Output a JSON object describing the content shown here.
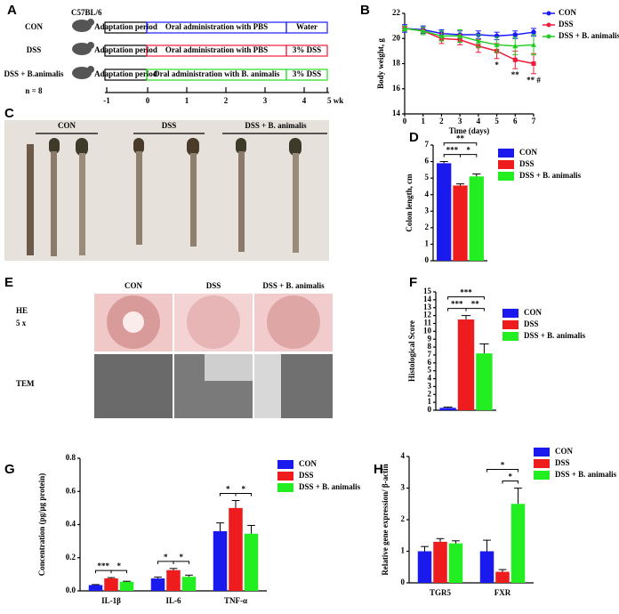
{
  "panel_labels": [
    "A",
    "B",
    "C",
    "D",
    "E",
    "F",
    "G",
    "H"
  ],
  "schematic": {
    "strain": "C57BL/6",
    "n": "n = 8",
    "groups": [
      {
        "name": "CON",
        "color": "#1a1aff",
        "stages": [
          "Adaptation period",
          "Oral administration with PBS",
          "Water"
        ]
      },
      {
        "name": "DSS",
        "color": "#ee1c3a",
        "stages": [
          "Adaptation period",
          "Oral administration with PBS",
          "3% DSS"
        ]
      },
      {
        "name": "DSS + B.animalis",
        "color": "#22dd22",
        "stages": [
          "Adaptation period",
          "Oral administration with B. animalis",
          "3% DSS"
        ]
      }
    ],
    "timeline": [
      "-1",
      "0",
      "1",
      "2",
      "3",
      "4",
      "5 wk"
    ]
  },
  "photos": {
    "colon_groups": [
      "CON",
      "DSS",
      "DSS + B. animalis"
    ],
    "histology_groups": [
      "CON",
      "DSS",
      "DSS + B. animalis"
    ],
    "rows": [
      "HE",
      "5 x",
      "TEM"
    ]
  },
  "chart_data": [
    {
      "type": "line",
      "xlabel": "Time (days)",
      "ylabel": "Body weight, g",
      "x": [
        0,
        1,
        2,
        3,
        4,
        5,
        6,
        7
      ],
      "xlim": [
        0,
        7
      ],
      "xticks": [
        0,
        1,
        2,
        3,
        4,
        5,
        6,
        7
      ],
      "ylim": [
        14,
        22
      ],
      "yticks": [
        14,
        16,
        18,
        20,
        22
      ],
      "series": [
        {
          "name": "CON",
          "color": "#1a1aff",
          "values": [
            20.8,
            20.7,
            20.4,
            20.3,
            20.3,
            20.2,
            20.3,
            20.5
          ],
          "errors": [
            0.3,
            0.3,
            0.3,
            0.3,
            0.3,
            0.3,
            0.3,
            0.3
          ]
        },
        {
          "name": "DSS",
          "color": "#ee1c3a",
          "values": [
            20.8,
            20.6,
            20.0,
            19.9,
            19.4,
            19.0,
            18.3,
            18.0
          ],
          "errors": [
            0.2,
            0.3,
            0.4,
            0.4,
            0.5,
            0.6,
            0.7,
            0.8
          ]
        },
        {
          "name": "DSS + B. animalis",
          "color": "#22cc22",
          "values": [
            20.8,
            20.6,
            20.2,
            20.2,
            19.8,
            19.5,
            19.4,
            19.5
          ],
          "errors": [
            0.2,
            0.3,
            0.4,
            0.5,
            0.5,
            0.6,
            0.7,
            0.8
          ]
        }
      ],
      "annotations": [
        {
          "text": "*",
          "x": 5
        },
        {
          "text": "**",
          "x": 6
        },
        {
          "text": "** #",
          "x": 7
        }
      ]
    },
    {
      "type": "bar",
      "ylabel": "Colon length, cm",
      "ylim": [
        0,
        7
      ],
      "yticks": [
        0,
        1,
        2,
        3,
        4,
        5,
        6,
        7
      ],
      "series": [
        {
          "name": "CON",
          "color": "#1a1aee",
          "values": [
            5.9
          ],
          "errors": [
            0.1
          ]
        },
        {
          "name": "DSS",
          "color": "#ee1c1c",
          "values": [
            4.55
          ],
          "errors": [
            0.1
          ]
        },
        {
          "name": "DSS + B. animalis",
          "color": "#22ee22",
          "values": [
            5.1
          ],
          "errors": [
            0.15
          ]
        }
      ],
      "annotations": [
        {
          "text": "**",
          "from": 0,
          "to": 2
        },
        {
          "text": "***",
          "from": 0,
          "to": 1
        },
        {
          "text": "*",
          "from": 1,
          "to": 2
        }
      ]
    },
    {
      "type": "bar",
      "ylabel": "Histological Score",
      "ylim": [
        0,
        15
      ],
      "yticks": [
        0,
        1,
        2,
        3,
        4,
        5,
        6,
        7,
        8,
        9,
        10,
        11,
        12,
        13,
        14,
        15
      ],
      "series": [
        {
          "name": "CON",
          "color": "#1a1aee",
          "values": [
            0.3
          ],
          "errors": [
            0.1
          ]
        },
        {
          "name": "DSS",
          "color": "#ee1c1c",
          "values": [
            11.5
          ],
          "errors": [
            0.5
          ]
        },
        {
          "name": "DSS + B. animalis",
          "color": "#22ee22",
          "values": [
            7.2
          ],
          "errors": [
            1.2
          ]
        }
      ],
      "annotations": [
        {
          "text": "***",
          "from": 0,
          "to": 2
        },
        {
          "text": "***",
          "from": 0,
          "to": 1
        },
        {
          "text": "**",
          "from": 1,
          "to": 2
        }
      ]
    },
    {
      "type": "bar",
      "ylabel": "Concentration (pg/μg protein)",
      "categories": [
        "IL-1β",
        "IL-6",
        "TNF-α"
      ],
      "ylim": [
        0,
        0.8
      ],
      "yticks": [
        {
          "value": 0,
          "label": "0.0"
        },
        0.2,
        0.4,
        0.6,
        0.8
      ],
      "series": [
        {
          "name": "CON",
          "color": "#1a1aee",
          "values": [
            0.035,
            0.075,
            0.36
          ],
          "errors": [
            0.003,
            0.008,
            0.05
          ]
        },
        {
          "name": "DSS",
          "color": "#ee1c1c",
          "values": [
            0.075,
            0.125,
            0.5
          ],
          "errors": [
            0.005,
            0.01,
            0.045
          ]
        },
        {
          "name": "DSS + B. animalis",
          "color": "#22ee22",
          "values": [
            0.055,
            0.085,
            0.345
          ],
          "errors": [
            0.003,
            0.01,
            0.05
          ]
        }
      ],
      "annotations": [
        {
          "text": "***",
          "category": 0,
          "from": 0,
          "to": 1
        },
        {
          "text": "*",
          "category": 0,
          "from": 1,
          "to": 2
        },
        {
          "text": "*",
          "category": 1,
          "from": 0,
          "to": 1
        },
        {
          "text": "*",
          "category": 1,
          "from": 1,
          "to": 2
        },
        {
          "text": "*",
          "category": 2,
          "from": 0,
          "to": 1
        },
        {
          "text": "*",
          "category": 2,
          "from": 1,
          "to": 2
        }
      ]
    },
    {
      "type": "bar",
      "ylabel": "Relative gene expression/ β-actin",
      "categories": [
        "TGR5",
        "FXR"
      ],
      "ylim": [
        0,
        4
      ],
      "yticks": [
        0,
        1,
        2,
        3,
        4
      ],
      "series": [
        {
          "name": "CON",
          "color": "#1a1aee",
          "values": [
            1.0,
            1.0
          ],
          "errors": [
            0.15,
            0.35
          ]
        },
        {
          "name": "DSS",
          "color": "#ee1c1c",
          "values": [
            1.3,
            0.35
          ],
          "errors": [
            0.1,
            0.07
          ]
        },
        {
          "name": "DSS + B. animalis",
          "color": "#22ee22",
          "values": [
            1.25,
            2.5
          ],
          "errors": [
            0.08,
            0.5
          ]
        }
      ],
      "annotations": [
        {
          "text": "*",
          "category": 1,
          "from": 0,
          "to": 2
        },
        {
          "text": "*",
          "category": 1,
          "from": 1,
          "to": 2
        }
      ]
    }
  ]
}
